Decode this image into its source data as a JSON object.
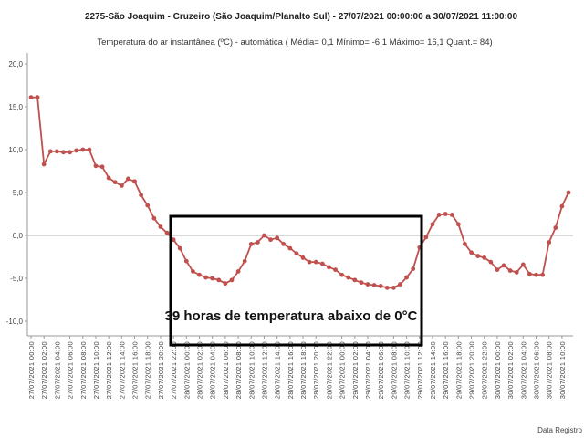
{
  "chart_data": {
    "type": "line",
    "title": "2275-São Joaquim - Cruzeiro (São Joaquim/Planalto Sul) - 27/07/2021 00:00:00 a 30/07/2021 11:00:00",
    "subtitle": "Temperatura do ar instantânea (ºC) - automática ( Média= 0,1    Mínimo= -6,1    Máximo= 16,1    Quant.= 84)",
    "xlabel": "Data Registro",
    "ylabel": "",
    "ylim": [
      -12,
      21
    ],
    "yticks": [
      "20,0",
      "15,0",
      "10,0",
      "5,0",
      "0,0",
      "-5,0",
      "-10,0"
    ],
    "ytick_values": [
      20,
      15,
      10,
      5,
      0,
      -5,
      -10
    ],
    "x_tick_labels": [
      "27/07/2021 00:00",
      "27/07/2021 02:00",
      "27/07/2021 04:00",
      "27/07/2021 06:00",
      "27/07/2021 08:00",
      "27/07/2021 10:00",
      "27/07/2021 12:00",
      "27/07/2021 14:00",
      "27/07/2021 16:00",
      "27/07/2021 18:00",
      "27/07/2021 20:00",
      "27/07/2021 22:00",
      "28/07/2021 00:00",
      "28/07/2021 02:00",
      "28/07/2021 04:00",
      "28/07/2021 06:00",
      "28/07/2021 08:00",
      "28/07/2021 10:00",
      "28/07/2021 12:00",
      "28/07/2021 14:00",
      "28/07/2021 16:00",
      "28/07/2021 18:00",
      "28/07/2021 20:00",
      "28/07/2021 22:00",
      "29/07/2021 00:00",
      "29/07/2021 02:00",
      "29/07/2021 04:00",
      "29/07/2021 06:00",
      "29/07/2021 08:00",
      "29/07/2021 10:00",
      "29/07/2021 12:00",
      "29/07/2021 14:00",
      "29/07/2021 16:00",
      "29/07/2021 18:00",
      "29/07/2021 20:00",
      "29/07/2021 22:00",
      "30/07/2021 00:00",
      "30/07/2021 02:00",
      "30/07/2021 04:00",
      "30/07/2021 06:00",
      "30/07/2021 08:00",
      "30/07/2021 10:00"
    ],
    "series": [
      {
        "values": [
          16.1,
          16.1,
          8.3,
          9.8,
          9.8,
          9.7,
          9.7,
          9.9,
          10.0,
          10.0,
          8.1,
          8.0,
          6.7,
          6.2,
          5.8,
          6.6,
          6.3,
          4.7,
          3.5,
          2.0,
          1.0,
          0.3,
          -0.5,
          -1.5,
          -3.0,
          -4.2,
          -4.6,
          -4.9,
          -5.0,
          -5.2,
          -5.6,
          -5.2,
          -4.2,
          -3.0,
          -1.0,
          -0.8,
          0.0,
          -0.5,
          -0.3,
          -1.0,
          -1.5,
          -2.1,
          -2.6,
          -3.1,
          -3.1,
          -3.3,
          -3.7,
          -4.0,
          -4.6,
          -4.9,
          -5.2,
          -5.5,
          -5.7,
          -5.8,
          -5.9,
          -6.1,
          -6.1,
          -5.7,
          -4.9,
          -3.9,
          -1.4,
          -0.2,
          1.3,
          2.4,
          2.5,
          2.4,
          1.3,
          -1.0,
          -2.0,
          -2.4,
          -2.6,
          -3.1,
          -4.0,
          -3.5,
          -4.1,
          -4.3,
          -3.4,
          -4.5,
          -4.6,
          -4.6,
          -0.8,
          0.9,
          3.4,
          5.0
        ]
      }
    ],
    "annotation": "39 horas de temperatura abaixo de 0°C",
    "colors": {
      "line": "#c0504d",
      "axis": "#999999",
      "grid_zero": "#999999",
      "box": "#000000"
    },
    "grid": false,
    "legend": "none"
  }
}
